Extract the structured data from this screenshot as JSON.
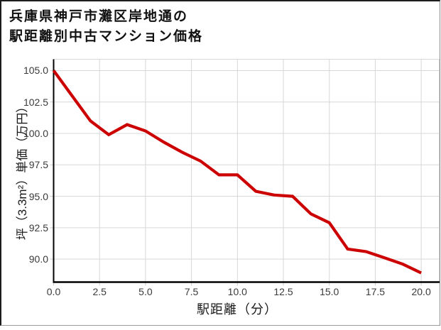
{
  "figure": {
    "title_line1": "兵庫県神戸市灘区岸地通の",
    "title_line2": "駅距離別中古マンション価格"
  },
  "chart_data": {
    "type": "line",
    "title": "兵庫県神戸市灘区岸地通の 駅距離別中古マンション価格",
    "xlabel": "駅距離（分）",
    "ylabel": "坪（3.3m²）単価（万円）",
    "x": [
      0,
      1,
      2,
      3,
      4,
      5,
      6,
      7,
      8,
      9,
      10,
      11,
      12,
      13,
      14,
      15,
      16,
      17,
      18,
      19,
      20
    ],
    "y": [
      105.0,
      103.0,
      101.0,
      99.9,
      100.7,
      100.2,
      99.3,
      98.5,
      97.8,
      96.7,
      96.7,
      95.4,
      95.1,
      95.0,
      93.6,
      92.9,
      90.8,
      90.6,
      90.1,
      89.6,
      88.9
    ],
    "xlim": [
      0,
      21
    ],
    "ylim": [
      88.2,
      105.9
    ],
    "x_ticks": [
      0.0,
      2.5,
      5.0,
      7.5,
      10.0,
      12.5,
      15.0,
      17.5,
      20.0
    ],
    "y_ticks": [
      90.0,
      92.5,
      95.0,
      97.5,
      100.0,
      102.5,
      105.0
    ],
    "grid": true,
    "legend": "none",
    "line_color": "#cc0000",
    "grid_color": "#d7d7d7",
    "spine_color": "#000000",
    "minor_spine_color": "#d7d7d7",
    "tick_label_color": "#3a3a3a"
  }
}
